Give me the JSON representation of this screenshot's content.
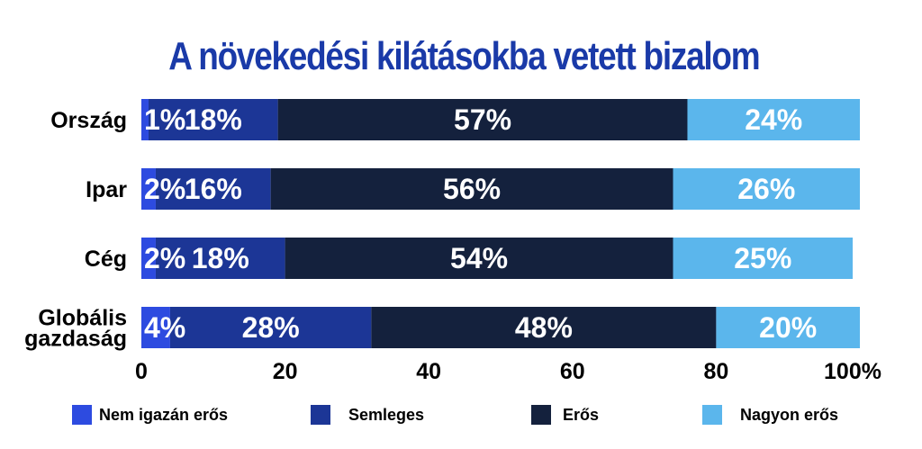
{
  "chart_data": {
    "type": "bar",
    "orientation": "horizontal",
    "stacked": true,
    "title": "A növekedési kilátásokba vetett bizalom",
    "categories": [
      "Ország",
      "Ipar",
      "Cég",
      "Globális gazdaság"
    ],
    "category_lines": [
      [
        "Ország"
      ],
      [
        "Ipar"
      ],
      [
        "Cég"
      ],
      [
        "Globális",
        "gazdaság"
      ]
    ],
    "series": [
      {
        "name": "Nem igazán erős",
        "color": "#2d4be0",
        "values": [
          1,
          2,
          2,
          4
        ]
      },
      {
        "name": "Semleges",
        "color": "#1c3696",
        "values": [
          18,
          16,
          18,
          28
        ]
      },
      {
        "name": "Erős",
        "color": "#14213d",
        "values": [
          57,
          56,
          54,
          48
        ]
      },
      {
        "name": "Nagyon erős",
        "color": "#5bb6ec",
        "values": [
          24,
          26,
          25,
          20
        ]
      }
    ],
    "xlim": [
      0,
      100
    ],
    "x_ticks": [
      "0",
      "20",
      "40",
      "60",
      "80",
      "100%"
    ],
    "legend_position": "bottom",
    "grid": false
  }
}
